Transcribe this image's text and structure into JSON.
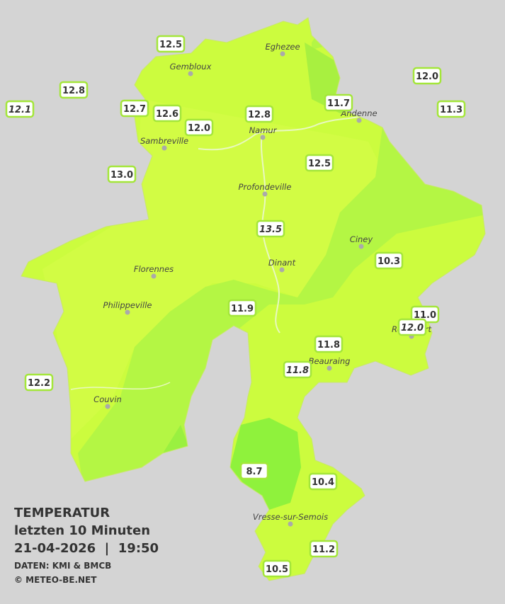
{
  "header": {
    "title": "TEMPERATUR",
    "subtitle": "letzten 10 Minuten",
    "datetime": "21-04-2026  |  19:50",
    "source": "DATEN: KMI & BMCB",
    "copyright": "© METEO-BE.NET"
  },
  "cities": [
    "Eghezee",
    "Gembloux",
    "Andenne",
    "Namur",
    "Sambreville",
    "Profondeville",
    "Ciney",
    "Dinant",
    "Florennes",
    "Philippeville",
    "Rochefort",
    "Beauraing",
    "Couvin",
    "Vresse-sur-Semois"
  ],
  "stations": [
    "12.5",
    "12.8",
    "12.1",
    "12.7",
    "12.6",
    "12.0",
    "12.8",
    "11.7",
    "12.0",
    "11.3",
    "13.0",
    "12.5",
    "13.5",
    "10.3",
    "11.9",
    "11.0",
    "12.0",
    "11.8",
    "11.8",
    "12.2",
    "8.7",
    "10.4",
    "11.2",
    "10.5"
  ]
}
